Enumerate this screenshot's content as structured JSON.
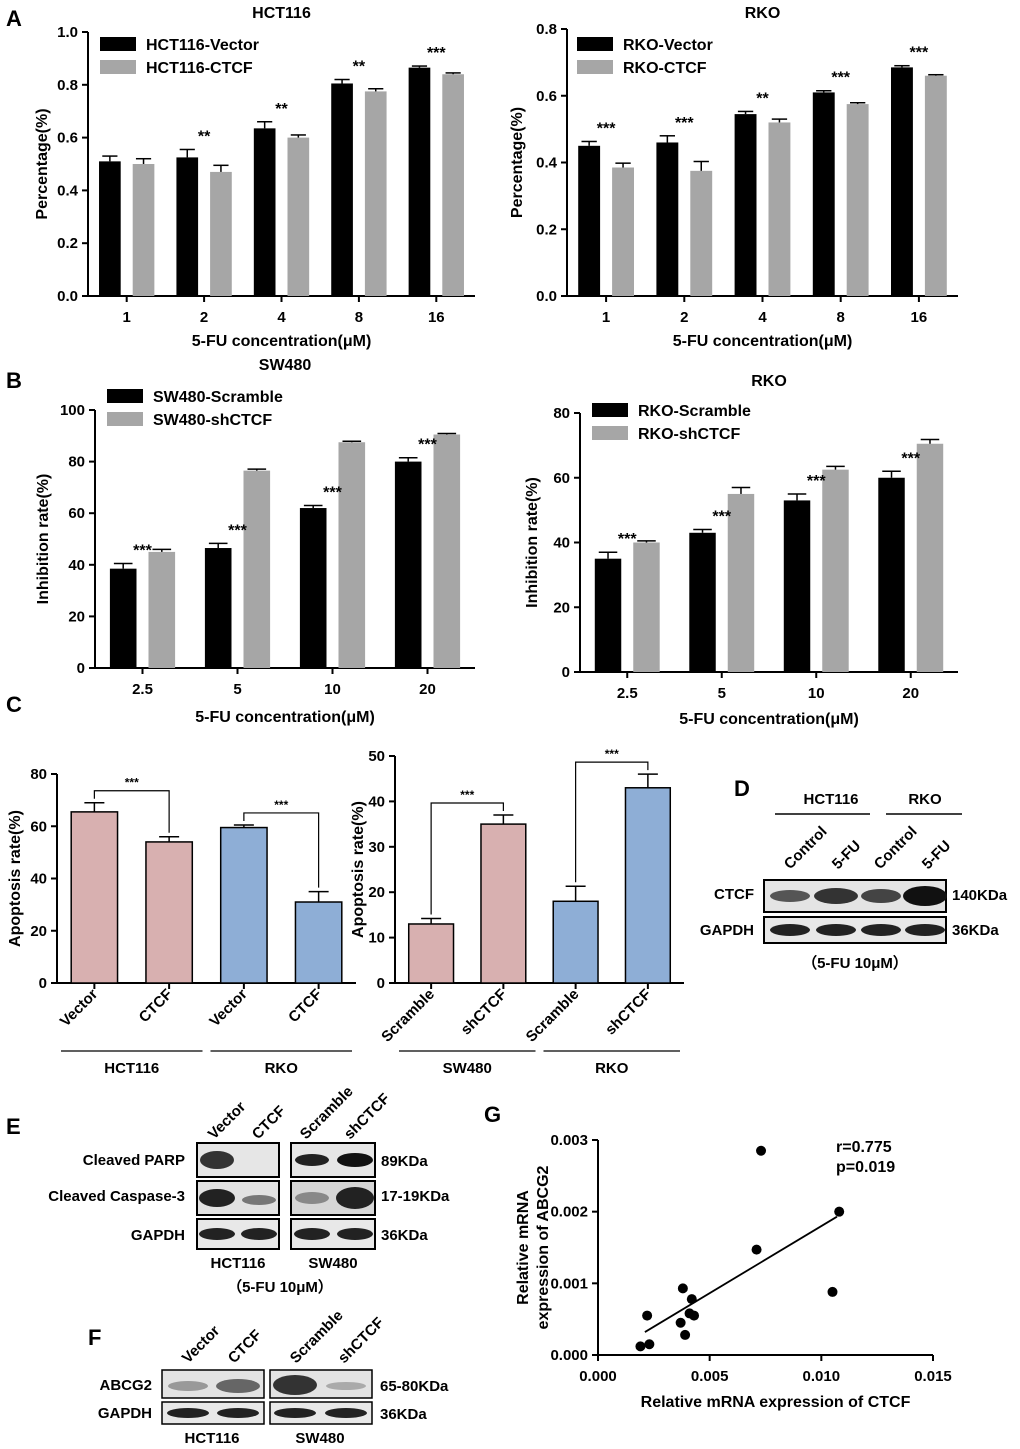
{
  "panel_letters": [
    "A",
    "B",
    "C",
    "D",
    "E",
    "F",
    "G"
  ],
  "colors": {
    "black": "#000000",
    "gray": "#a6a6a6",
    "pink": "#d8b0b0",
    "blue": "#8eaed6"
  },
  "chart_data": [
    {
      "id": "A1",
      "type": "bar",
      "title": "HCT116",
      "xlabel": "5-FU concentration(μM)",
      "ylabel": "Percentage(%)",
      "ylim": [
        0,
        1.0
      ],
      "yticks": [
        "0.0",
        "0.2",
        "0.4",
        "0.6",
        "0.8",
        "1.0"
      ],
      "categories": [
        "1",
        "2",
        "4",
        "8",
        "16"
      ],
      "series": [
        {
          "name": "HCT116-Vector",
          "color": "#000000",
          "values": [
            0.51,
            0.525,
            0.635,
            0.805,
            0.865
          ],
          "errors": [
            0.02,
            0.03,
            0.025,
            0.015,
            0.006
          ]
        },
        {
          "name": "HCT116-CTCF",
          "color": "#a6a6a6",
          "values": [
            0.5,
            0.47,
            0.6,
            0.775,
            0.84
          ],
          "errors": [
            0.02,
            0.025,
            0.01,
            0.01,
            0.005
          ]
        }
      ],
      "significance": [
        "",
        "**",
        "**",
        "**",
        "***"
      ],
      "legend": "top-left"
    },
    {
      "id": "A2",
      "type": "bar",
      "title": "RKO",
      "xlabel": "5-FU concentration(μM)",
      "ylabel": "Percentage(%)",
      "ylim": [
        0,
        0.8
      ],
      "yticks": [
        "0.0",
        "0.2",
        "0.4",
        "0.6",
        "0.8"
      ],
      "categories": [
        "1",
        "2",
        "4",
        "8",
        "16"
      ],
      "series": [
        {
          "name": "RKO-Vector",
          "color": "#000000",
          "values": [
            0.45,
            0.46,
            0.545,
            0.61,
            0.685
          ],
          "errors": [
            0.013,
            0.02,
            0.008,
            0.005,
            0.005
          ]
        },
        {
          "name": "RKO-CTCF",
          "color": "#a6a6a6",
          "values": [
            0.385,
            0.375,
            0.52,
            0.575,
            0.66
          ],
          "errors": [
            0.013,
            0.028,
            0.01,
            0.004,
            0.003
          ]
        }
      ],
      "significance": [
        "***",
        "***",
        "**",
        "***",
        "***"
      ],
      "legend": "top-left"
    },
    {
      "id": "B1",
      "type": "bar",
      "title": "SW480",
      "xlabel": "5-FU concentration(μM)",
      "ylabel": "Inhibition rate(%)",
      "ylim": [
        0,
        100
      ],
      "yticks": [
        "0",
        "20",
        "40",
        "60",
        "80",
        "100"
      ],
      "categories": [
        "2.5",
        "5",
        "10",
        "20"
      ],
      "series": [
        {
          "name": "SW480-Scramble",
          "color": "#000000",
          "values": [
            38.5,
            46.5,
            62,
            80
          ],
          "errors": [
            2,
            1.8,
            1,
            1.5
          ]
        },
        {
          "name": "SW480-shCTCF",
          "color": "#a6a6a6",
          "values": [
            45,
            76.5,
            87.5,
            90.5
          ],
          "errors": [
            1,
            0.6,
            0.4,
            0.4
          ]
        }
      ],
      "significance": [
        "***",
        "***",
        "***",
        "***"
      ],
      "legend": "top-left"
    },
    {
      "id": "B2",
      "type": "bar",
      "title": "RKO",
      "xlabel": "5-FU concentration(μM)",
      "ylabel": "Inhibition rate(%)",
      "ylim": [
        0,
        80
      ],
      "yticks": [
        "0",
        "20",
        "40",
        "60",
        "80"
      ],
      "categories": [
        "2.5",
        "5",
        "10",
        "20"
      ],
      "series": [
        {
          "name": "RKO-Scramble",
          "color": "#000000",
          "values": [
            35,
            43,
            53,
            60
          ],
          "errors": [
            2,
            1,
            2,
            2
          ]
        },
        {
          "name": "RKO-shCTCF",
          "color": "#a6a6a6",
          "values": [
            40,
            55,
            62.5,
            70.5
          ],
          "errors": [
            0.5,
            2,
            1,
            1.3
          ]
        }
      ],
      "significance": [
        "***",
        "***",
        "***",
        "***"
      ],
      "legend": "top-left"
    },
    {
      "id": "C1",
      "type": "bar",
      "title": "",
      "xlabel": "",
      "ylabel": "Apoptosis rate(%)",
      "ylim": [
        0,
        80
      ],
      "yticks": [
        "0",
        "20",
        "40",
        "60",
        "80"
      ],
      "categories": [
        "Vector",
        "CTCF",
        "Vector",
        "CTCF"
      ],
      "groups": [
        "HCT116",
        "RKO"
      ],
      "values": [
        65.5,
        54,
        59.5,
        31
      ],
      "errors": [
        3.5,
        2,
        1,
        4
      ],
      "colors": [
        "#d8b0b0",
        "#d8b0b0",
        "#8eaed6",
        "#8eaed6"
      ],
      "brackets": [
        {
          "from": 0,
          "to": 1,
          "label": "***"
        },
        {
          "from": 2,
          "to": 3,
          "label": "***"
        }
      ]
    },
    {
      "id": "C2",
      "type": "bar",
      "title": "",
      "xlabel": "",
      "ylabel": "Apoptosis rate(%)",
      "ylim": [
        0,
        50
      ],
      "yticks": [
        "0",
        "10",
        "20",
        "30",
        "40",
        "50"
      ],
      "categories": [
        "Scramble",
        "shCTCF",
        "Scramble",
        "shCTCF"
      ],
      "groups": [
        "SW480",
        "RKO"
      ],
      "values": [
        13,
        35,
        18,
        43
      ],
      "errors": [
        1.2,
        2,
        3.3,
        3
      ],
      "colors": [
        "#d8b0b0",
        "#d8b0b0",
        "#8eaed6",
        "#8eaed6"
      ],
      "brackets": [
        {
          "from": 0,
          "to": 1,
          "label": "***"
        },
        {
          "from": 2,
          "to": 3,
          "label": "***"
        }
      ]
    },
    {
      "id": "G",
      "type": "scatter",
      "title": "",
      "xlabel": "Relative mRNA expression of CTCF",
      "ylabel": "Relative mRNA expression of ABCG2",
      "ylabel_lines": [
        "Relative mRNA",
        "expression of ABCG2"
      ],
      "xlim": [
        0,
        0.015
      ],
      "ylim": [
        0,
        0.003
      ],
      "xticks": [
        "0.000",
        "0.005",
        "0.010",
        "0.015"
      ],
      "yticks": [
        "0.000",
        "0.001",
        "0.002",
        "0.003"
      ],
      "points": [
        [
          0.0019,
          0.00012
        ],
        [
          0.0023,
          0.00015
        ],
        [
          0.0022,
          0.00055
        ],
        [
          0.0037,
          0.00045
        ],
        [
          0.0038,
          0.00093
        ],
        [
          0.0039,
          0.00028
        ],
        [
          0.0041,
          0.00058
        ],
        [
          0.0043,
          0.00055
        ],
        [
          0.0042,
          0.00078
        ],
        [
          0.0071,
          0.00147
        ],
        [
          0.0073,
          0.00285
        ],
        [
          0.0105,
          0.00088
        ],
        [
          0.0108,
          0.002
        ]
      ],
      "fit_line": {
        "x": [
          0.0021,
          0.0107
        ],
        "y": [
          0.00032,
          0.00193
        ]
      },
      "stats": {
        "r": "r=0.775",
        "p": "p=0.019"
      }
    }
  ],
  "blots": {
    "D": {
      "groups": [
        "HCT116",
        "RKO"
      ],
      "lanes": [
        "Control",
        "5-FU",
        "Control",
        "5-FU"
      ],
      "rows": [
        {
          "label": "CTCF",
          "size": "140KDa"
        },
        {
          "label": "GAPDH",
          "size": "36KDa"
        }
      ],
      "note": "（5-FU 10μM）"
    },
    "E": {
      "lanes": [
        "Vector",
        "CTCF",
        "Scramble",
        "shCTCF"
      ],
      "groups": [
        "HCT116",
        "SW480"
      ],
      "rows": [
        {
          "label": "Cleaved PARP",
          "size": "89KDa"
        },
        {
          "label": "Cleaved Caspase-3",
          "size": "17-19KDa"
        },
        {
          "label": "GAPDH",
          "size": "36KDa"
        }
      ],
      "note": "（5-FU 10μM）"
    },
    "F": {
      "lanes": [
        "Vector",
        "CTCF",
        "Scramble",
        "shCTCF"
      ],
      "groups": [
        "HCT116",
        "SW480"
      ],
      "rows": [
        {
          "label": "ABCG2",
          "size": "65-80KDa"
        },
        {
          "label": "GAPDH",
          "size": "36KDa"
        }
      ]
    }
  }
}
